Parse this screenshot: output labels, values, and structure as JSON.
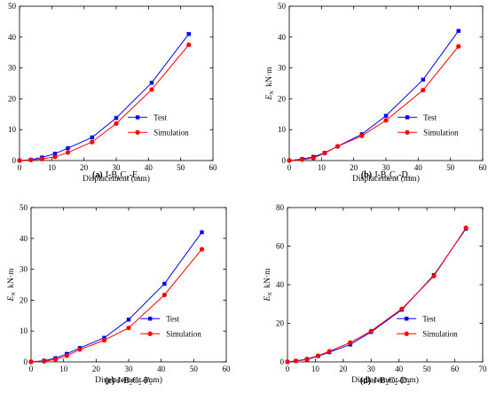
{
  "chart_data": [
    {
      "type": "line",
      "panel": "a",
      "caption_label": "(a)",
      "caption_text": "J-B₁C₂-F₁",
      "xlabel": "Displacement (mm)",
      "ylabel": "",
      "xlim": [
        0,
        60
      ],
      "ylim": [
        0,
        50
      ],
      "xticks": [
        0,
        10,
        20,
        30,
        40,
        50,
        60
      ],
      "yticks": [
        0,
        10,
        20,
        30,
        40,
        50
      ],
      "legend": "lower-right",
      "grid": false,
      "series": [
        {
          "name": "Test",
          "color": "#0000ff",
          "marker": "square",
          "x": [
            0,
            3.5,
            7,
            11,
            15,
            22.5,
            30,
            41,
            52.5
          ],
          "y": [
            0,
            0.3,
            1,
            2.2,
            4,
            7.5,
            13.8,
            25.2,
            41
          ]
        },
        {
          "name": "Simulation",
          "color": "#ff0000",
          "marker": "circle",
          "x": [
            0,
            3.5,
            7,
            11,
            15,
            22.5,
            30,
            41,
            52.5
          ],
          "y": [
            0,
            0.2,
            0.5,
            1.2,
            2.6,
            6,
            12,
            23,
            37.5
          ]
        }
      ]
    },
    {
      "type": "line",
      "panel": "b",
      "caption_label": "(b)",
      "caption_text": "J-B₂C₂-D₁",
      "xlabel": "Displacement (mm)",
      "ylabel": "E_N  kN·m",
      "xlim": [
        0,
        60
      ],
      "ylim": [
        0,
        50
      ],
      "xticks": [
        0,
        10,
        20,
        30,
        40,
        50,
        60
      ],
      "yticks": [
        0,
        10,
        20,
        30,
        40,
        50
      ],
      "legend": "lower-right",
      "grid": false,
      "series": [
        {
          "name": "Test",
          "color": "#0000ff",
          "marker": "square",
          "x": [
            0,
            4,
            7.5,
            11,
            15,
            22.5,
            30,
            41.5,
            52.5
          ],
          "y": [
            0,
            0.5,
            1.2,
            2.5,
            4.6,
            8.5,
            14.5,
            26.2,
            42
          ]
        },
        {
          "name": "Simulation",
          "color": "#ff0000",
          "marker": "circle",
          "x": [
            0,
            4,
            7.5,
            11,
            15,
            22.5,
            30,
            41.5,
            52.5
          ],
          "y": [
            0,
            0.3,
            0.8,
            2.4,
            4.6,
            8,
            13,
            22.8,
            37
          ]
        }
      ]
    },
    {
      "type": "line",
      "panel": "c",
      "caption_label": "(c)",
      "caption_text": "J-B₂C₂-F₁",
      "xlabel": "Displacement (mm)",
      "ylabel": "E_N  kN·m",
      "xlim": [
        0,
        60
      ],
      "ylim": [
        0,
        50
      ],
      "xticks": [
        0,
        10,
        20,
        30,
        40,
        50,
        60
      ],
      "yticks": [
        0,
        10,
        20,
        30,
        40,
        50
      ],
      "legend": "lower-right",
      "grid": false,
      "series": [
        {
          "name": "Test",
          "color": "#0000ff",
          "marker": "square",
          "x": [
            0,
            4,
            7.5,
            11,
            15,
            22.5,
            30,
            41,
            52.5
          ],
          "y": [
            0,
            0.4,
            1.2,
            2.6,
            4.5,
            7.8,
            13.7,
            25.3,
            42
          ]
        },
        {
          "name": "Simulation",
          "color": "#ff0000",
          "marker": "circle",
          "x": [
            0,
            4,
            7.5,
            11,
            15,
            22.5,
            30,
            41,
            52.5
          ],
          "y": [
            0,
            0.2,
            0.8,
            2,
            4,
            7,
            11,
            21.7,
            36.5
          ]
        }
      ]
    },
    {
      "type": "line",
      "panel": "d",
      "caption_label": "(d)",
      "caption_text": "J-B₂C₂-D₂",
      "xlabel": "Displacement (mm)",
      "ylabel": "E_N  kN·m",
      "xlim": [
        0,
        70
      ],
      "ylim": [
        0,
        80
      ],
      "xticks": [
        0,
        10,
        20,
        30,
        40,
        50,
        60,
        70
      ],
      "yticks": [
        0,
        20,
        40,
        60,
        80
      ],
      "legend": "lower-right",
      "grid": false,
      "series": [
        {
          "name": "Test",
          "color": "#0000ff",
          "marker": "square",
          "x": [
            0,
            3,
            7,
            11,
            15,
            22.5,
            30,
            41,
            52.5,
            64
          ],
          "y": [
            0,
            0.5,
            1.2,
            3,
            5,
            9,
            15.5,
            27,
            45,
            69
          ]
        },
        {
          "name": "Simulation",
          "color": "#ff0000",
          "marker": "circle",
          "x": [
            0,
            3,
            7,
            11,
            15,
            22.5,
            30,
            41,
            52.5,
            64
          ],
          "y": [
            0,
            0.5,
            1.5,
            3.2,
            5.5,
            10,
            16,
            27.5,
            44.5,
            69.5
          ]
        }
      ]
    }
  ]
}
